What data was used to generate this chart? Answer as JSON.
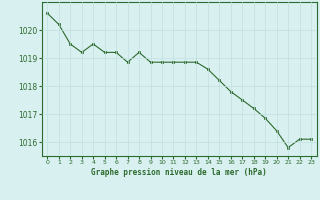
{
  "x": [
    0,
    1,
    2,
    3,
    4,
    5,
    6,
    7,
    8,
    9,
    10,
    11,
    12,
    13,
    14,
    15,
    16,
    17,
    18,
    19,
    20,
    21,
    22,
    23
  ],
  "y": [
    1020.6,
    1020.2,
    1019.5,
    1019.2,
    1019.5,
    1019.2,
    1019.2,
    1018.85,
    1019.2,
    1018.85,
    1018.85,
    1018.85,
    1018.85,
    1018.85,
    1018.6,
    1018.2,
    1017.8,
    1017.5,
    1017.2,
    1016.85,
    1016.4,
    1015.8,
    1016.1,
    1016.1
  ],
  "line_color": "#2d6a2d",
  "marker_color": "#2d6a2d",
  "bg_color": "#d8f0f0",
  "grid_color": "#c0dede",
  "xlabel": "Graphe pression niveau de la mer (hPa)",
  "xlabel_color": "#2d6a2d",
  "tick_color": "#2d6a2d",
  "ylim": [
    1015.5,
    1021.0
  ],
  "yticks": [
    1016,
    1017,
    1018,
    1019,
    1020
  ],
  "xticks": [
    0,
    1,
    2,
    3,
    4,
    5,
    6,
    7,
    8,
    9,
    10,
    11,
    12,
    13,
    14,
    15,
    16,
    17,
    18,
    19,
    20,
    21,
    22,
    23
  ]
}
